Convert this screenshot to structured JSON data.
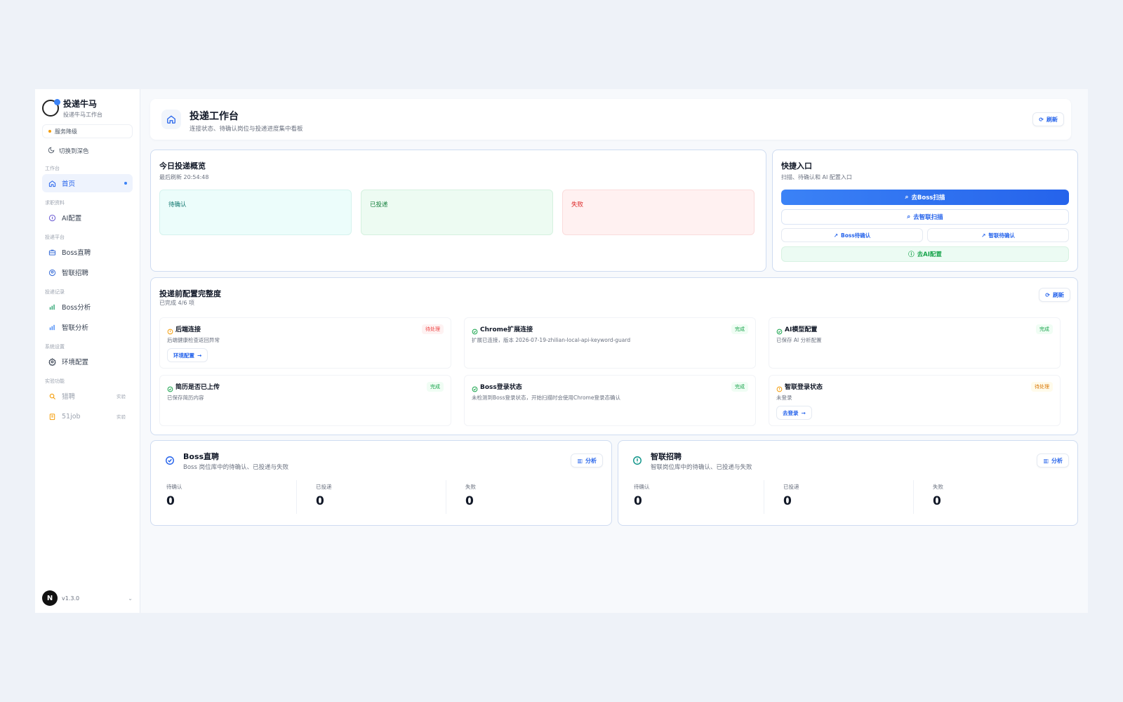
{
  "brand": {
    "title": "投递牛马",
    "subtitle": "投递牛马工作台"
  },
  "status": {
    "label": "服务降级",
    "color": "#f59e0b"
  },
  "theme_toggle": "切换到深色",
  "nav": {
    "sections": [
      {
        "label": "工作台",
        "items": [
          {
            "label": "首页",
            "icon": "home-icon"
          }
        ]
      },
      {
        "label": "求职资料",
        "items": [
          {
            "label": "AI配置",
            "icon": "info-icon"
          }
        ]
      },
      {
        "label": "投递平台",
        "items": [
          {
            "label": "Boss直聘",
            "icon": "briefcase-icon"
          },
          {
            "label": "智联招聘",
            "icon": "user-circle-icon"
          }
        ]
      },
      {
        "label": "投递记录",
        "items": [
          {
            "label": "Boss分析",
            "icon": "bar-chart-icon"
          },
          {
            "label": "智联分析",
            "icon": "bar-chart-icon"
          }
        ]
      },
      {
        "label": "系统设置",
        "items": [
          {
            "label": "环境配置",
            "icon": "gear-icon"
          }
        ]
      },
      {
        "label": "实验功能",
        "items": [
          {
            "label": "猎聘",
            "icon": "search-icon",
            "badge": "实验"
          },
          {
            "label": "51job",
            "icon": "clipboard-icon",
            "badge": "实验"
          }
        ]
      }
    ]
  },
  "footer": {
    "avatar": "N",
    "version": "v1.3.0"
  },
  "header": {
    "title": "投递工作台",
    "subtitle": "连接状态、待确认岗位与投递进度集中看板",
    "refresh": "刷新"
  },
  "overview": {
    "title": "今日投递概览",
    "last_refresh": "最后刷新 20:54:48",
    "stats": [
      {
        "label": "待确认",
        "color": "#0f766e",
        "bg": "#ecfdfb"
      },
      {
        "label": "已投递",
        "color": "#15803d",
        "bg": "#edfbf2"
      },
      {
        "label": "失败",
        "color": "#dc2626",
        "bg": "#fff1f1"
      }
    ]
  },
  "quick": {
    "title": "快捷入口",
    "subtitle": "扫描、待确认和 AI 配置入口",
    "boss_scan": "去Boss扫描",
    "zhilian_scan": "去智联扫描",
    "boss_confirm": "Boss待确认",
    "zhilian_confirm": "智联待确认",
    "ai_config": "去AI配置"
  },
  "config": {
    "title": "投递前配置完整度",
    "progress": "已完成 4/6 项",
    "refresh": "刷新",
    "items": [
      {
        "title": "后端连接",
        "desc": "后端健康检查返回异常",
        "tag": "待处理",
        "status": "pending",
        "action": "环境配置"
      },
      {
        "title": "Chrome扩展连接",
        "desc": "扩展已连接，版本 2026-07-19-zhilian-local-api-keyword-guard",
        "tag": "完成",
        "status": "done"
      },
      {
        "title": "AI模型配置",
        "desc": "已保存 AI 分析配置",
        "tag": "完成",
        "status": "done"
      },
      {
        "title": "简历是否已上传",
        "desc": "已保存简历内容",
        "tag": "完成",
        "status": "done"
      },
      {
        "title": "Boss登录状态",
        "desc": "未检测到Boss登录状态，开始扫描时会使用Chrome登录态确认",
        "tag": "完成",
        "status": "done"
      },
      {
        "title": "智联登录状态",
        "desc": "未登录",
        "tag": "待处理",
        "status": "warn",
        "action": "去登录"
      }
    ]
  },
  "platforms": [
    {
      "title": "Boss直聘",
      "subtitle": "Boss 岗位库中的待确认、已投递与失败",
      "action": "分析",
      "stats": [
        {
          "label": "待确认",
          "value": "0"
        },
        {
          "label": "已投递",
          "value": "0"
        },
        {
          "label": "失败",
          "value": "0"
        }
      ]
    },
    {
      "title": "智联招聘",
      "subtitle": "智联岗位库中的待确认、已投递与失败",
      "action": "分析",
      "stats": [
        {
          "label": "待确认",
          "value": "0"
        },
        {
          "label": "已投递",
          "value": "0"
        },
        {
          "label": "失败",
          "value": "0"
        }
      ]
    }
  ]
}
